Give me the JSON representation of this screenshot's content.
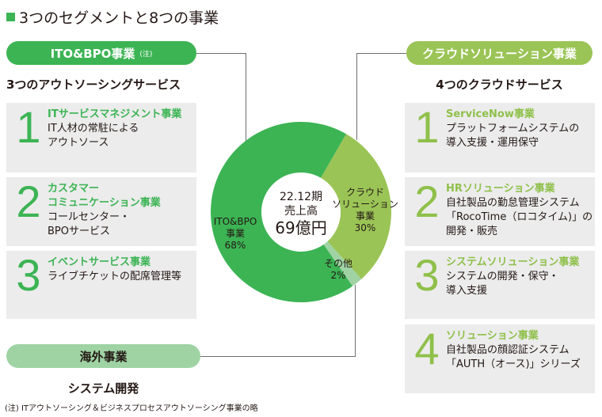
{
  "page": {
    "title": "3つのセグメントと8つの事業",
    "footnote": "(注) ITアウトソーシング＆ビジネスプロセスアウトソーシング事業の略"
  },
  "colors": {
    "ito_green": "#3cb454",
    "cloud_green": "#9bc456",
    "overseas_green": "#9fd3a4",
    "box_gray": "#ececec",
    "connector": "#6e6e6e"
  },
  "segments": {
    "ito": {
      "label": "ITO&BPO事業",
      "note": "(注)",
      "subtitle": "3つのアウトソーシングサービス",
      "items": [
        {
          "num": "1",
          "head": [
            "ITサービスマネジメント事業"
          ],
          "desc": [
            "IT人材の常駐による",
            "アウトソース"
          ]
        },
        {
          "num": "2",
          "head": [
            "カスタマー",
            "コミュニケーション事業"
          ],
          "desc": [
            "コールセンター・",
            "BPOサービス"
          ]
        },
        {
          "num": "3",
          "head": [
            "イベントサービス事業"
          ],
          "desc": [
            "ライブチケットの配席管理等"
          ]
        }
      ]
    },
    "cloud": {
      "label": "クラウドソリューション事業",
      "subtitle": "4つのクラウドサービス",
      "items": [
        {
          "num": "1",
          "head": [
            "ServiceNow事業"
          ],
          "desc": [
            "プラットフォームシステムの",
            "導入支援・運用保守"
          ]
        },
        {
          "num": "2",
          "head": [
            "HRソリューション事業"
          ],
          "desc": [
            "自社製品の勤怠管理システム",
            "「RocoTime（ロコタイム)」の",
            "開発・販売"
          ]
        },
        {
          "num": "3",
          "head": [
            "システムソリューション事業"
          ],
          "desc": [
            "システムの開発・保守・",
            "導入支援"
          ]
        },
        {
          "num": "4",
          "head": [
            "ソリューション事業"
          ],
          "desc": [
            "自社製品の顔認証システム",
            "「AUTH（オース)」シリーズ"
          ]
        }
      ]
    },
    "overseas": {
      "label": "海外事業",
      "subtitle": "システム開発"
    }
  },
  "chart_data": {
    "type": "pie",
    "title": "22.12期 売上高 69億円",
    "center_text": [
      "22.12期",
      "売上高",
      "69億円"
    ],
    "categories": [
      "ITO&BPO事業",
      "クラウドソリューション事業",
      "その他"
    ],
    "values": [
      68,
      30,
      2
    ],
    "unit": "%",
    "total": "69億円",
    "period": "22.12期",
    "colors": [
      "#3cb454",
      "#9bc456",
      "#9fd3a4"
    ],
    "labels": [
      {
        "lines": [
          "ITO&BPO",
          "事業",
          "68%"
        ]
      },
      {
        "lines": [
          "クラウド",
          "ソリューション",
          "事業",
          "30%"
        ]
      },
      {
        "lines": [
          "その他",
          "2%"
        ]
      }
    ]
  }
}
